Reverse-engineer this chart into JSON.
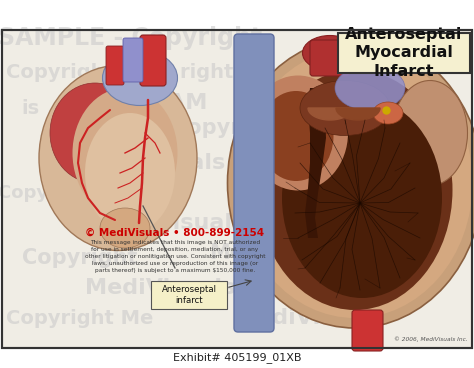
{
  "title": "Anteroseptal\nMyocardial\nInfarct",
  "title_box_color": "#f5f0d0",
  "title_box_edge": "#333333",
  "title_fontsize": 11.5,
  "title_fontweight": "bold",
  "background_color": "#ffffff",
  "border_color": "#444444",
  "copyright_text": "© MediVisuals • 800-899-2154",
  "copyright_detail": "This message indicates that this image is NOT authorized\nfor use in settlement, deposition, mediation, trial, or any\nother litigation or nonlitigation use. Consistent with copyright\nlaws, unauthorized use or reproduction of this image (or\nparts thereof) is subject to a maximum $150,000 fine.",
  "watermark_color": "#c8c8c8",
  "label_text": "Anteroseptal\ninfarct",
  "label_box_color": "#f5f0c8",
  "footer_text": "Exhibit# 405199_01XB",
  "footer_copyright": "© 2006, MediVisuals Inc.",
  "bg_color": "#f0ede5",
  "small_heart_body": "#d4a888",
  "small_heart_left": "#c04040",
  "vessel_red": "#cc3333",
  "vessel_blue": "#8899bb",
  "large_heart_outer": "#c8a07a",
  "large_heart_wall": "#d4a888",
  "large_heart_inner": "#7a3820",
  "large_heart_dark": "#4a2010",
  "right_vent_color": "#c09070",
  "septum_color": "#3a1a08",
  "trabeculae_color": "#1a0800"
}
